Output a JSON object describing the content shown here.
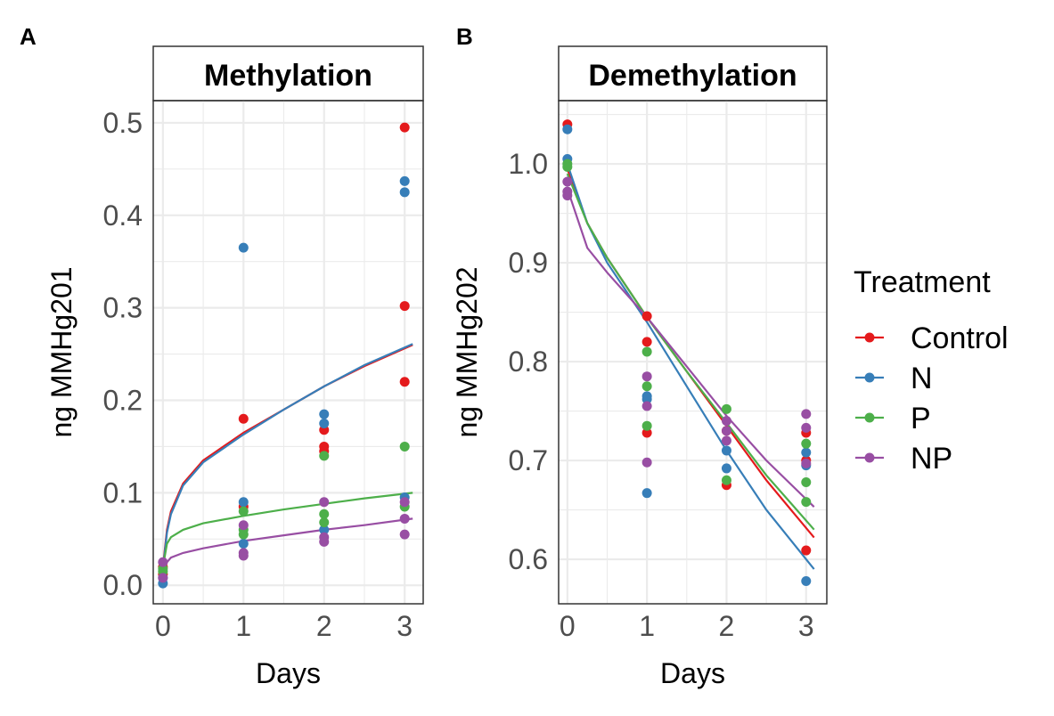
{
  "colors": {
    "Control": "#E41A1C",
    "N": "#377EB8",
    "P": "#4DAF4A",
    "NP": "#984EA3"
  },
  "legend": {
    "title": "Treatment",
    "items": [
      "Control",
      "N",
      "P",
      "NP"
    ]
  },
  "chart_data": [
    {
      "type": "scatter",
      "panel_label": "A",
      "title": "Methylation",
      "xlabel": "Days",
      "ylabel": "ng MMHg201",
      "xlim": [
        -0.12,
        3.23
      ],
      "ylim": [
        -0.02,
        0.524
      ],
      "xticks": [
        0,
        1,
        2,
        3
      ],
      "yticks": [
        0.0,
        0.1,
        0.2,
        0.3,
        0.4,
        0.5
      ],
      "ytick_labels": [
        "0.0",
        "0.1",
        "0.2",
        "0.3",
        "0.4",
        "0.5"
      ],
      "grid": true,
      "series": [
        {
          "name": "Control",
          "points": [
            [
              0,
              0.02
            ],
            [
              0,
              0.012
            ],
            [
              1,
              0.18
            ],
            [
              1,
              0.085
            ],
            [
              2,
              0.168
            ],
            [
              2,
              0.15
            ],
            [
              2,
              0.145
            ],
            [
              3,
              0.495
            ],
            [
              3,
              0.302
            ],
            [
              3,
              0.22
            ]
          ],
          "fit": [
            [
              0,
              0.02
            ],
            [
              0.05,
              0.06
            ],
            [
              0.1,
              0.08
            ],
            [
              0.25,
              0.11
            ],
            [
              0.5,
              0.135
            ],
            [
              1,
              0.165
            ],
            [
              1.5,
              0.19
            ],
            [
              2,
              0.215
            ],
            [
              2.5,
              0.237
            ],
            [
              3.1,
              0.26
            ]
          ]
        },
        {
          "name": "N",
          "points": [
            [
              0,
              0.002
            ],
            [
              0,
              0.008
            ],
            [
              1,
              0.365
            ],
            [
              1,
              0.09
            ],
            [
              1,
              0.045
            ],
            [
              2,
              0.185
            ],
            [
              2,
              0.175
            ],
            [
              2,
              0.06
            ],
            [
              3,
              0.437
            ],
            [
              3,
              0.425
            ],
            [
              3,
              0.095
            ]
          ],
          "fit": [
            [
              0,
              0.018
            ],
            [
              0.05,
              0.057
            ],
            [
              0.1,
              0.077
            ],
            [
              0.25,
              0.108
            ],
            [
              0.5,
              0.133
            ],
            [
              1,
              0.163
            ],
            [
              1.5,
              0.19
            ],
            [
              2,
              0.215
            ],
            [
              2.5,
              0.238
            ],
            [
              3.1,
              0.261
            ]
          ]
        },
        {
          "name": "P",
          "points": [
            [
              0,
              0.015
            ],
            [
              0,
              0.018
            ],
            [
              1,
              0.08
            ],
            [
              1,
              0.06
            ],
            [
              1,
              0.055
            ],
            [
              2,
              0.14
            ],
            [
              2,
              0.077
            ],
            [
              2,
              0.068
            ],
            [
              3,
              0.15
            ],
            [
              3,
              0.085
            ]
          ],
          "fit": [
            [
              0,
              0.02
            ],
            [
              0.05,
              0.045
            ],
            [
              0.1,
              0.052
            ],
            [
              0.25,
              0.06
            ],
            [
              0.5,
              0.067
            ],
            [
              1,
              0.075
            ],
            [
              1.5,
              0.082
            ],
            [
              2,
              0.088
            ],
            [
              2.5,
              0.094
            ],
            [
              3.1,
              0.1
            ]
          ]
        },
        {
          "name": "NP",
          "points": [
            [
              0,
              0.025
            ],
            [
              0,
              0.008
            ],
            [
              1,
              0.065
            ],
            [
              1,
              0.035
            ],
            [
              1,
              0.032
            ],
            [
              2,
              0.09
            ],
            [
              2,
              0.052
            ],
            [
              2,
              0.047
            ],
            [
              3,
              0.09
            ],
            [
              3,
              0.072
            ],
            [
              3,
              0.055
            ]
          ],
          "fit": [
            [
              0,
              0.012
            ],
            [
              0.05,
              0.025
            ],
            [
              0.1,
              0.03
            ],
            [
              0.25,
              0.035
            ],
            [
              0.5,
              0.04
            ],
            [
              1,
              0.048
            ],
            [
              1.5,
              0.054
            ],
            [
              2,
              0.06
            ],
            [
              2.5,
              0.065
            ],
            [
              3.1,
              0.072
            ]
          ]
        }
      ]
    },
    {
      "type": "scatter",
      "panel_label": "B",
      "title": "Demethylation",
      "xlabel": "Days",
      "ylabel": "ng MMHg202",
      "xlim": [
        -0.11,
        3.26
      ],
      "ylim": [
        0.555,
        1.064
      ],
      "xticks": [
        0,
        1,
        2,
        3
      ],
      "yticks": [
        0.6,
        0.7,
        0.8,
        0.9,
        1.0
      ],
      "ytick_labels": [
        "0.6",
        "0.7",
        "0.8",
        "0.9",
        "1.0"
      ],
      "grid": true,
      "series": [
        {
          "name": "Control",
          "points": [
            [
              0,
              1.04
            ],
            [
              1,
              0.846
            ],
            [
              1,
              0.82
            ],
            [
              1,
              0.728
            ],
            [
              2,
              0.73
            ],
            [
              2,
              0.675
            ],
            [
              3,
              0.728
            ],
            [
              3,
              0.7
            ],
            [
              3,
              0.609
            ]
          ],
          "fit": [
            [
              0,
              0.995
            ],
            [
              0.25,
              0.94
            ],
            [
              0.5,
              0.905
            ],
            [
              1,
              0.845
            ],
            [
              1.5,
              0.79
            ],
            [
              2,
              0.735
            ],
            [
              2.5,
              0.68
            ],
            [
              3.1,
              0.622
            ]
          ]
        },
        {
          "name": "N",
          "points": [
            [
              0,
              1.035
            ],
            [
              0,
              1.005
            ],
            [
              1,
              0.765
            ],
            [
              1,
              0.762
            ],
            [
              1,
              0.667
            ],
            [
              2,
              0.71
            ],
            [
              2,
              0.692
            ],
            [
              3,
              0.708
            ],
            [
              3,
              0.695
            ],
            [
              3,
              0.578
            ]
          ],
          "fit": [
            [
              0,
              1.0
            ],
            [
              0.25,
              0.94
            ],
            [
              0.5,
              0.9
            ],
            [
              1,
              0.84
            ],
            [
              1.5,
              0.775
            ],
            [
              2,
              0.71
            ],
            [
              2.5,
              0.65
            ],
            [
              3.1,
              0.59
            ]
          ]
        },
        {
          "name": "P",
          "points": [
            [
              0,
              1.0
            ],
            [
              0,
              0.997
            ],
            [
              1,
              0.81
            ],
            [
              1,
              0.775
            ],
            [
              1,
              0.735
            ],
            [
              2,
              0.752
            ],
            [
              2,
              0.68
            ],
            [
              3,
              0.717
            ],
            [
              3,
              0.678
            ],
            [
              3,
              0.658
            ]
          ],
          "fit": [
            [
              0,
              0.99
            ],
            [
              0.25,
              0.94
            ],
            [
              0.5,
              0.905
            ],
            [
              1,
              0.845
            ],
            [
              1.5,
              0.79
            ],
            [
              2,
              0.738
            ],
            [
              2.5,
              0.685
            ],
            [
              3.1,
              0.63
            ]
          ]
        },
        {
          "name": "NP",
          "points": [
            [
              0,
              0.982
            ],
            [
              0,
              0.972
            ],
            [
              0,
              0.968
            ],
            [
              1,
              0.785
            ],
            [
              1,
              0.755
            ],
            [
              1,
              0.698
            ],
            [
              2,
              0.74
            ],
            [
              2,
              0.73
            ],
            [
              2,
              0.72
            ],
            [
              3,
              0.747
            ],
            [
              3,
              0.733
            ],
            [
              3,
              0.697
            ]
          ],
          "fit": [
            [
              0,
              0.975
            ],
            [
              0.25,
              0.915
            ],
            [
              0.5,
              0.89
            ],
            [
              1,
              0.845
            ],
            [
              1.5,
              0.795
            ],
            [
              2,
              0.745
            ],
            [
              2.5,
              0.7
            ],
            [
              3.1,
              0.653
            ]
          ]
        }
      ]
    }
  ]
}
